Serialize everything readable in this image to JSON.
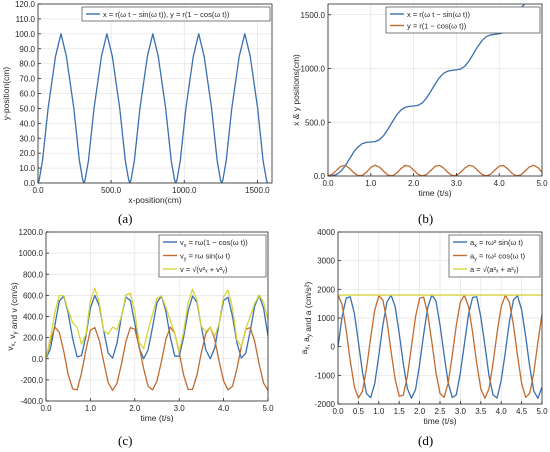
{
  "panels": [
    {
      "label": "(a)"
    },
    {
      "label": "(b)"
    },
    {
      "label": "(c)"
    },
    {
      "label": "(d)"
    }
  ],
  "chart_data": [
    {
      "type": "line",
      "xlabel": "x-position(cm)",
      "ylabel": "y-position(cm)",
      "xlim": [
        0,
        1600
      ],
      "ylim": [
        0,
        120
      ],
      "xticks": [
        0,
        500,
        1000,
        1500
      ],
      "xtick_labels": [
        "0.0",
        "500.0",
        "1000.0",
        "1500.0"
      ],
      "yticks": [
        0,
        10,
        20,
        30,
        40,
        50,
        60,
        70,
        80,
        90,
        100,
        110,
        120
      ],
      "ytick_labels": [
        "0.0",
        "10.0",
        "20.0",
        "30.0",
        "40.0",
        "50.0",
        "60.0",
        "70.0",
        "80.0",
        "90.0",
        "100.0",
        "110.0",
        "120.0"
      ],
      "grid": true,
      "legend_position": "top-right",
      "series": [
        {
          "name": "x = r(ω t − sin(ω t)), y = r(1 − cos(ω t))",
          "color": "#3a6fb0",
          "x": [
            0,
            8,
            31,
            69,
            120,
            157,
            194,
            245,
            283,
            306,
            314,
            322,
            345,
            383,
            434,
            471,
            508,
            559,
            597,
            620,
            628,
            636,
            659,
            697,
            748,
            785,
            822,
            873,
            911,
            934,
            942,
            950,
            973,
            1011,
            1062,
            1099,
            1136,
            1187,
            1225,
            1248,
            1256,
            1264,
            1287,
            1325,
            1376,
            1414,
            1451,
            1502,
            1539,
            1562,
            1570
          ],
          "y": [
            0,
            2,
            15,
            50,
            85,
            100,
            85,
            50,
            15,
            2,
            0,
            2,
            15,
            50,
            85,
            100,
            85,
            50,
            15,
            2,
            0,
            2,
            15,
            50,
            85,
            100,
            85,
            50,
            15,
            2,
            0,
            2,
            15,
            50,
            85,
            100,
            85,
            50,
            15,
            2,
            0,
            2,
            15,
            50,
            85,
            100,
            85,
            50,
            15,
            2,
            0
          ]
        }
      ]
    },
    {
      "type": "line",
      "xlabel": "time (t/s)",
      "ylabel": "x & y positions(cm)",
      "xlim": [
        0,
        5
      ],
      "ylim": [
        0,
        1600
      ],
      "xticks": [
        0,
        1,
        2,
        3,
        4,
        5
      ],
      "xtick_labels": [
        "0.0",
        "1.0",
        "2.0",
        "3.0",
        "4.0",
        "5.0"
      ],
      "yticks": [
        0,
        500,
        1000,
        1500
      ],
      "ytick_labels": [
        "0.0",
        "500.0",
        "1000.0",
        "1500.0"
      ],
      "grid": true,
      "legend_position": "top-right",
      "series": [
        {
          "name": "x = r(ω t − sin(ω t))",
          "color": "#3a6fb0",
          "x": [
            0,
            0.1,
            0.2,
            0.3,
            0.4,
            0.5,
            0.6,
            0.7,
            0.8,
            0.9,
            1.0,
            1.1,
            1.2,
            1.3,
            1.4,
            1.5,
            1.6,
            1.7,
            1.8,
            1.9,
            2.0,
            2.1,
            2.2,
            2.3,
            2.4,
            2.5,
            2.6,
            2.7,
            2.8,
            2.9,
            3.0,
            3.1,
            3.2,
            3.3,
            3.4,
            3.5,
            3.6,
            3.7,
            3.8,
            3.9,
            4.0,
            4.1,
            4.2,
            4.3,
            4.4,
            4.5,
            4.6,
            4.7,
            4.8,
            4.9,
            5.0
          ],
          "y": [
            0,
            2,
            14,
            44,
            93,
            157,
            222,
            270,
            301,
            313,
            316,
            320,
            337,
            376,
            434,
            501,
            565,
            612,
            638,
            648,
            651,
            657,
            679,
            724,
            787,
            853,
            913,
            955,
            976,
            983,
            987,
            995,
            1022,
            1073,
            1139,
            1205,
            1261,
            1297,
            1313,
            1318,
            1323,
            1335,
            1368,
            1423,
            1491,
            1556,
            1606,
            1637,
            1650,
            1654,
            1660
          ]
        },
        {
          "name": "y = r(1 − cos(ω t))",
          "color": "#c36b2e",
          "x": [
            0,
            0.1,
            0.2,
            0.3,
            0.4,
            0.5,
            0.6,
            0.7,
            0.8,
            0.9,
            1.0,
            1.1,
            1.2,
            1.3,
            1.4,
            1.5,
            1.6,
            1.7,
            1.8,
            1.9,
            2.0,
            2.1,
            2.2,
            2.3,
            2.4,
            2.5,
            2.6,
            2.7,
            2.8,
            2.9,
            3.0,
            3.1,
            3.2,
            3.3,
            3.4,
            3.5,
            3.6,
            3.7,
            3.8,
            3.9,
            4.0,
            4.1,
            4.2,
            4.3,
            4.4,
            4.5,
            4.6,
            4.7,
            4.8,
            4.9,
            5.0
          ],
          "y": [
            0,
            16,
            53,
            91,
            99,
            72,
            32,
            3,
            5,
            36,
            80,
            100,
            83,
            44,
            9,
            1,
            25,
            67,
            97,
            92,
            56,
            17,
            0,
            14,
            50,
            89,
            99,
            75,
            34,
            4,
            4,
            34,
            75,
            99,
            89,
            50,
            14,
            0,
            17,
            56,
            92,
            97,
            67,
            25,
            1,
            9,
            44,
            83,
            100,
            80,
            36
          ]
        }
      ]
    },
    {
      "type": "line",
      "xlabel": "time (t/s)",
      "ylabel": "vx, vy and v (cm/s)",
      "ylabel_parts": {
        "v1": "v",
        "v1_sub": "x",
        "comma1": ", ",
        "v2": "v",
        "v2_sub": "y",
        "rest": " and v  (cm/s)"
      },
      "xlim": [
        0,
        5
      ],
      "ylim": [
        -400,
        1200
      ],
      "xticks": [
        0,
        1,
        2,
        3,
        4,
        5
      ],
      "xtick_labels": [
        "0.0",
        "1.0",
        "2.0",
        "3.0",
        "4.0",
        "5.0"
      ],
      "yticks": [
        -400,
        -200,
        0,
        200,
        400,
        600,
        800,
        1000,
        1200
      ],
      "ytick_labels": [
        "-400.0",
        "-200.0",
        "0.0",
        "200.0",
        "400.0",
        "600.0",
        "800.0",
        "1000.0",
        "1200.0"
      ],
      "grid": true,
      "legend_position": "top-right",
      "legend_text": [
        {
          "v": "v",
          "sub": "x",
          "rhs": " = rω(1 − cos(ω t))"
        },
        {
          "v": "v",
          "sub": "y",
          "rhs": " = rω sin(ω t)"
        },
        {
          "v": "v",
          "sub": "",
          "rhs": " = √(v²ₓ + v²ᵧ)"
        }
      ],
      "series": [
        {
          "name": "vx = rω(1 − cos(ω t))",
          "color": "#3a6fb0",
          "x": [
            0,
            0.1,
            0.2,
            0.3,
            0.4,
            0.5,
            0.6,
            0.7,
            0.8,
            0.9,
            1.0,
            1.1,
            1.2,
            1.3,
            1.4,
            1.5,
            1.6,
            1.7,
            1.8,
            1.9,
            2.0,
            2.1,
            2.2,
            2.3,
            2.4,
            2.5,
            2.6,
            2.7,
            2.8,
            2.9,
            3.0,
            3.1,
            3.2,
            3.3,
            3.4,
            3.5,
            3.6,
            3.7,
            3.8,
            3.9,
            4.0,
            4.1,
            4.2,
            4.3,
            4.4,
            4.5,
            4.6,
            4.7,
            4.8,
            4.9,
            5.0
          ],
          "y": [
            0,
            96,
            318,
            546,
            594,
            432,
            192,
            18,
            30,
            216,
            480,
            600,
            498,
            264,
            54,
            6,
            150,
            402,
            582,
            552,
            336,
            102,
            0,
            84,
            300,
            534,
            594,
            450,
            204,
            24,
            24,
            204,
            450,
            594,
            534,
            300,
            84,
            0,
            102,
            336,
            552,
            582,
            402,
            150,
            6,
            54,
            264,
            498,
            600,
            480,
            216
          ]
        },
        {
          "name": "vy = rω sin(ω t)",
          "color": "#c36b2e",
          "x": [
            0,
            0.1,
            0.2,
            0.3,
            0.4,
            0.5,
            0.6,
            0.7,
            0.8,
            0.9,
            1.0,
            1.1,
            1.2,
            1.3,
            1.4,
            1.5,
            1.6,
            1.7,
            1.8,
            1.9,
            2.0,
            2.1,
            2.2,
            2.3,
            2.4,
            2.5,
            2.6,
            2.7,
            2.8,
            2.9,
            3.0,
            3.1,
            3.2,
            3.3,
            3.4,
            3.5,
            3.6,
            3.7,
            3.8,
            3.9,
            4.0,
            4.1,
            4.2,
            4.3,
            4.4,
            4.5,
            4.6,
            4.7,
            4.8,
            4.9,
            5.0
          ],
          "y": [
            0,
            170,
            300,
            250,
            70,
            -150,
            -285,
            -295,
            -135,
            85,
            270,
            295,
            175,
            -30,
            -225,
            -300,
            -230,
            -50,
            165,
            295,
            280,
            115,
            -95,
            -260,
            -295,
            -210,
            -25,
            185,
            300,
            240,
            60,
            -155,
            -290,
            -290,
            -155,
            60,
            240,
            300,
            185,
            -25,
            -210,
            -295,
            -260,
            -95,
            115,
            280,
            295,
            165,
            -50,
            -230,
            -300
          ]
        },
        {
          "name": "v = √(vx² + vy²)",
          "color": "#d8d43a",
          "x": [
            0,
            0.1,
            0.2,
            0.3,
            0.4,
            0.5,
            0.6,
            0.7,
            0.8,
            0.9,
            1.0,
            1.1,
            1.2,
            1.3,
            1.4,
            1.5,
            1.6,
            1.7,
            1.8,
            1.9,
            2.0,
            2.1,
            2.2,
            2.3,
            2.4,
            2.5,
            2.6,
            2.7,
            2.8,
            2.9,
            3.0,
            3.1,
            3.2,
            3.3,
            3.4,
            3.5,
            3.6,
            3.7,
            3.8,
            3.9,
            4.0,
            4.1,
            4.2,
            4.3,
            4.4,
            4.5,
            4.6,
            4.7,
            4.8,
            4.9,
            5.0
          ],
          "y": [
            0,
            196,
            437,
            599,
            599,
            455,
            342,
            296,
            138,
            232,
            551,
            669,
            528,
            265,
            232,
            300,
            275,
            405,
            605,
            621,
            440,
            153,
            95,
            273,
            423,
            574,
            595,
            486,
            362,
            242,
            65,
            255,
            527,
            658,
            555,
            306,
            258,
            300,
            211,
            337,
            590,
            651,
            480,
            177,
            115,
            285,
            403,
            524,
            602,
            533,
            369
          ]
        }
      ]
    },
    {
      "type": "line",
      "xlabel": "time (t/s)",
      "ylabel": "ax, ay and a (cm/s²)",
      "ylabel_parts": {
        "v1": "a",
        "v1_sub": "x",
        "comma1": ", ",
        "v2": "a",
        "v2_sub": "y",
        "rest": " and a (cm/s²)"
      },
      "xlim": [
        0,
        5
      ],
      "ylim": [
        -2000,
        4000
      ],
      "xticks": [
        0,
        0.5,
        1,
        1.5,
        2,
        2.5,
        3,
        3.5,
        4,
        4.5,
        5
      ],
      "xtick_labels": [
        "0.0",
        "0.5",
        "1.0",
        "1.5",
        "2.0",
        "2.5",
        "3.0",
        "3.5",
        "4.0",
        "4.5",
        "5.0"
      ],
      "yticks": [
        -2000,
        -1000,
        0,
        1000,
        2000,
        3000,
        4000
      ],
      "ytick_labels": [
        "-2000",
        "-1000",
        "0",
        "1000",
        "2000",
        "3000",
        "4000"
      ],
      "grid": true,
      "legend_position": "top-right",
      "legend_text": [
        {
          "v": "a",
          "sub": "x",
          "rhs": " = rω² sin(ω t)"
        },
        {
          "v": "a",
          "sub": "y",
          "rhs": " = rω² cos(ω t)"
        },
        {
          "v": "a",
          "sub": "",
          "rhs": " = √(a²ₓ + a²ᵧ)"
        }
      ],
      "series": [
        {
          "name": "ax = rω² sin(ω t)",
          "color": "#3a6fb0",
          "x": [
            0,
            0.1,
            0.2,
            0.3,
            0.4,
            0.5,
            0.6,
            0.7,
            0.8,
            0.9,
            1.0,
            1.1,
            1.2,
            1.3,
            1.4,
            1.5,
            1.6,
            1.7,
            1.8,
            1.9,
            2.0,
            2.1,
            2.2,
            2.3,
            2.4,
            2.5,
            2.6,
            2.7,
            2.8,
            2.9,
            3.0,
            3.1,
            3.2,
            3.3,
            3.4,
            3.5,
            3.6,
            3.7,
            3.8,
            3.9,
            4.0,
            4.1,
            4.2,
            4.3,
            4.4,
            4.5,
            4.6,
            4.7,
            4.8,
            4.9,
            5.0
          ],
          "y": [
            0,
            1040,
            1690,
            1740,
            1170,
            160,
            -890,
            -1640,
            -1780,
            -1290,
            -310,
            750,
            1560,
            1800,
            1400,
            470,
            -590,
            -1460,
            -1800,
            -1500,
            -620,
            440,
            1370,
            1800,
            1600,
            760,
            -280,
            -1260,
            -1770,
            -1680,
            -900,
            110,
            1140,
            1720,
            1740,
            1040,
            50,
            -1010,
            -1680,
            -1790,
            -1170,
            -210,
            860,
            1630,
            1780,
            1290,
            360,
            -710,
            -1550,
            -1800,
            -1410
          ]
        },
        {
          "name": "ay = rω² cos(ω t)",
          "color": "#c36b2e",
          "x": [
            0,
            0.1,
            0.2,
            0.3,
            0.4,
            0.5,
            0.6,
            0.7,
            0.8,
            0.9,
            1.0,
            1.1,
            1.2,
            1.3,
            1.4,
            1.5,
            1.6,
            1.7,
            1.8,
            1.9,
            2.0,
            2.1,
            2.2,
            2.3,
            2.4,
            2.5,
            2.6,
            2.7,
            2.8,
            2.9,
            3.0,
            3.1,
            3.2,
            3.3,
            3.4,
            3.5,
            3.6,
            3.7,
            3.8,
            3.9,
            4.0,
            4.1,
            4.2,
            4.3,
            4.4,
            4.5,
            4.6,
            4.7,
            4.8,
            4.9,
            5.0
          ],
          "y": [
            1800,
            1470,
            580,
            -490,
            -1390,
            -1790,
            -1560,
            -750,
            310,
            1270,
            1770,
            1630,
            900,
            -160,
            -1130,
            -1730,
            -1690,
            -1040,
            0,
            1040,
            1690,
            1730,
            1130,
            160,
            -900,
            -1630,
            -1770,
            -1270,
            -310,
            750,
            1560,
            1790,
            1390,
            490,
            -580,
            -1470,
            -1800,
            -1470,
            -580,
            490,
            1390,
            1790,
            1560,
            750,
            -310,
            -1270,
            -1770,
            -1630,
            -900,
            160,
            1130
          ]
        },
        {
          "name": "a = √(ax² + ay²)",
          "color": "#d8d43a",
          "x": [
            0,
            5
          ],
          "y": [
            1800,
            1800
          ]
        }
      ]
    }
  ]
}
